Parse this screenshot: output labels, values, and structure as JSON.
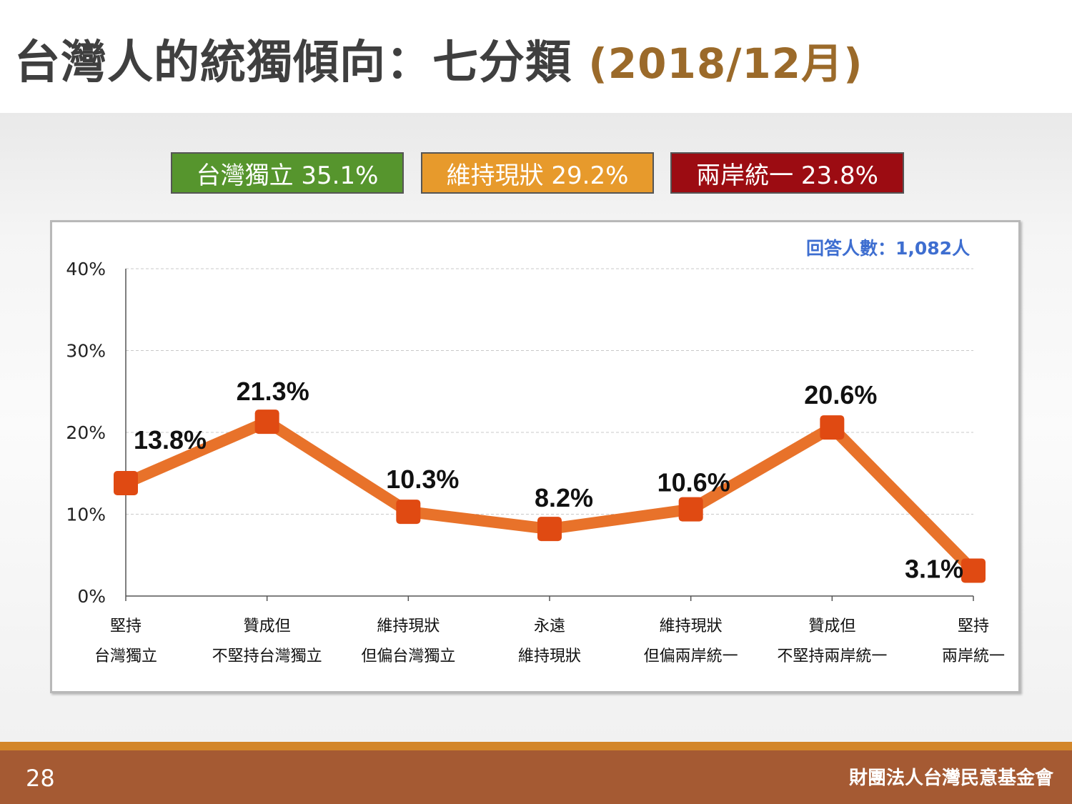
{
  "slide": {
    "title_main": "台灣人的統獨傾向：七分類 ",
    "title_accent": "(2018/12月)",
    "page_number": "28",
    "organization": "財團法人台灣民意基金會"
  },
  "legend_boxes": [
    {
      "label": "台灣獨立 35.1%",
      "color": "#56952d"
    },
    {
      "label": "維持現狀 29.2%",
      "color": "#e79a2c"
    },
    {
      "label": "兩岸統一 23.8%",
      "color": "#9c0c12"
    }
  ],
  "chart_note": "回答人數：1,082人",
  "chart_data": {
    "type": "line",
    "categories": [
      [
        "堅持",
        "台灣獨立"
      ],
      [
        "贊成但",
        "不堅持台灣獨立"
      ],
      [
        "維持現狀",
        "但偏台灣獨立"
      ],
      [
        "永遠",
        "維持現狀"
      ],
      [
        "維持現狀",
        "但偏兩岸統一"
      ],
      [
        "贊成但",
        "不堅持兩岸統一"
      ],
      [
        "堅持",
        "兩岸統一"
      ]
    ],
    "values": [
      13.8,
      21.3,
      10.3,
      8.2,
      10.6,
      20.6,
      3.1
    ],
    "data_labels": [
      "13.8%",
      "21.3%",
      "10.3%",
      "8.2%",
      "10.6%",
      "20.6%",
      "3.1%"
    ],
    "yticks": [
      {
        "value": 0,
        "label": "0%"
      },
      {
        "value": 10,
        "label": "10%"
      },
      {
        "value": 20,
        "label": "20%"
      },
      {
        "value": 30,
        "label": "30%"
      },
      {
        "value": 40,
        "label": "40%"
      }
    ],
    "ylim": [
      0,
      40
    ],
    "grid": true,
    "line_color": "#e8722a",
    "marker_color": "#e04a12"
  }
}
